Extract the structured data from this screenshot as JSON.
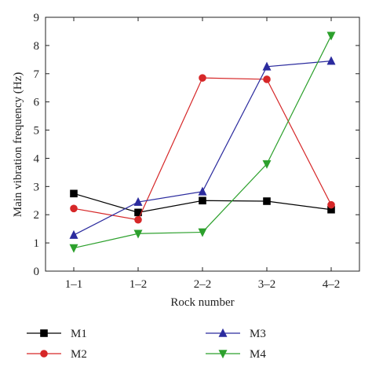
{
  "chart_data": {
    "type": "line",
    "title": "",
    "xlabel": "Rock number",
    "ylabel": "Main vibration frequency (Hz)",
    "categories": [
      "1–1",
      "1–2",
      "2–2",
      "3–2",
      "4–2"
    ],
    "ylim": [
      0,
      9
    ],
    "yticks": [
      0,
      1,
      2,
      3,
      4,
      5,
      6,
      7,
      8,
      9
    ],
    "grid": false,
    "legend_position": "bottom",
    "series": [
      {
        "name": "M1",
        "color": "#000000",
        "marker": "square",
        "values": [
          2.75,
          2.08,
          2.5,
          2.48,
          2.18
        ]
      },
      {
        "name": "M2",
        "color": "#d62728",
        "marker": "circle",
        "values": [
          2.22,
          1.82,
          6.85,
          6.8,
          2.35
        ]
      },
      {
        "name": "M3",
        "color": "#2b2b9e",
        "marker": "triangle-up",
        "values": [
          1.28,
          2.45,
          2.82,
          7.25,
          7.45
        ]
      },
      {
        "name": "M4",
        "color": "#2ca02c",
        "marker": "triangle-down",
        "values": [
          0.82,
          1.33,
          1.38,
          3.8,
          8.35
        ]
      }
    ]
  }
}
